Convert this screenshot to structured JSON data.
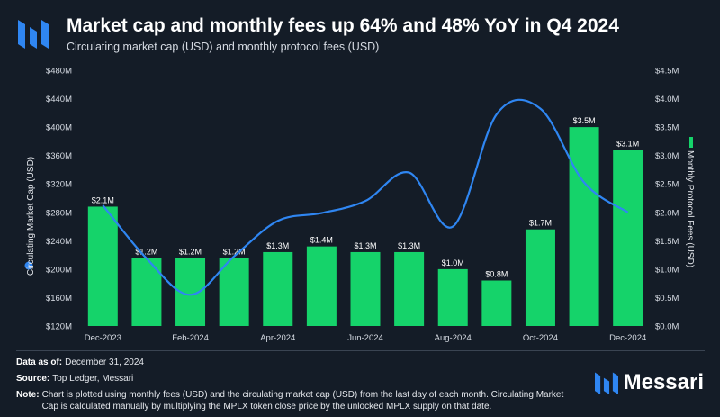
{
  "header": {
    "title": "Market cap and monthly fees up 64% and 48% YoY in Q4 2024",
    "subtitle": "Circulating market cap (USD) and monthly protocol fees (USD)"
  },
  "footer": {
    "data_as_of_label": "Data as of:",
    "data_as_of_value": "December 31, 2024",
    "source_label": "Source:",
    "source_value": "Top Ledger, Messari",
    "note_label": "Note:",
    "note_value": "Chart is plotted using monthly fees (USD) and the circulating market cap (USD) from the last day of each month. Circulating Market Cap is calculated manually by multiplying the MPLX token close price by the unlocked MPLX supply on that date."
  },
  "brand": {
    "name": "Messari"
  },
  "colors": {
    "bar": "#15d36a",
    "line": "#2f86f2",
    "background": "#141c27"
  },
  "chart_data": {
    "type": "bar+line",
    "categories": [
      "Dec-2023",
      "Jan-2024",
      "Feb-2024",
      "Mar-2024",
      "Apr-2024",
      "May-2024",
      "Jun-2024",
      "Jul-2024",
      "Aug-2024",
      "Sep-2024",
      "Oct-2024",
      "Nov-2024",
      "Dec-2024"
    ],
    "x_tick_labels": [
      "Dec-2023",
      "",
      "Feb-2024",
      "",
      "Apr-2024",
      "",
      "Jun-2024",
      "",
      "Aug-2024",
      "",
      "Oct-2024",
      "",
      "Dec-2024"
    ],
    "series": [
      {
        "name": "Monthly Protocol Fees (USD)",
        "kind": "bar",
        "axis": "right",
        "values": [
          2.1,
          1.2,
          1.2,
          1.2,
          1.3,
          1.4,
          1.3,
          1.3,
          1.0,
          0.8,
          1.7,
          3.5,
          3.1
        ],
        "labels": [
          "$2.1M",
          "$1.2M",
          "$1.2M",
          "$1.2M",
          "$1.3M",
          "$1.4M",
          "$1.3M",
          "$1.3M",
          "$1.0M",
          "$0.8M",
          "$1.7M",
          "$3.5M",
          "$3.1M"
        ]
      },
      {
        "name": "Circulating Market Cap (USD)",
        "kind": "line",
        "axis": "left",
        "values": [
          290,
          215,
          164,
          218,
          268,
          279,
          296,
          336,
          260,
          418,
          426,
          322,
          280
        ]
      }
    ],
    "left_axis": {
      "label": "Circulating Market Cap (USD)",
      "ylim": [
        120,
        480
      ],
      "ticks": [
        "$120M",
        "$160M",
        "$200M",
        "$240M",
        "$280M",
        "$320M",
        "$360M",
        "$400M",
        "$440M",
        "$480M"
      ]
    },
    "right_axis": {
      "label": "Monthly Protocol Fees (USD)",
      "ylim": [
        0,
        4.5
      ],
      "ticks": [
        "$0.0M",
        "$0.5M",
        "$1.0M",
        "$1.5M",
        "$2.0M",
        "$2.5M",
        "$3.0M",
        "$3.5M",
        "$4.0M",
        "$4.5M"
      ]
    }
  }
}
